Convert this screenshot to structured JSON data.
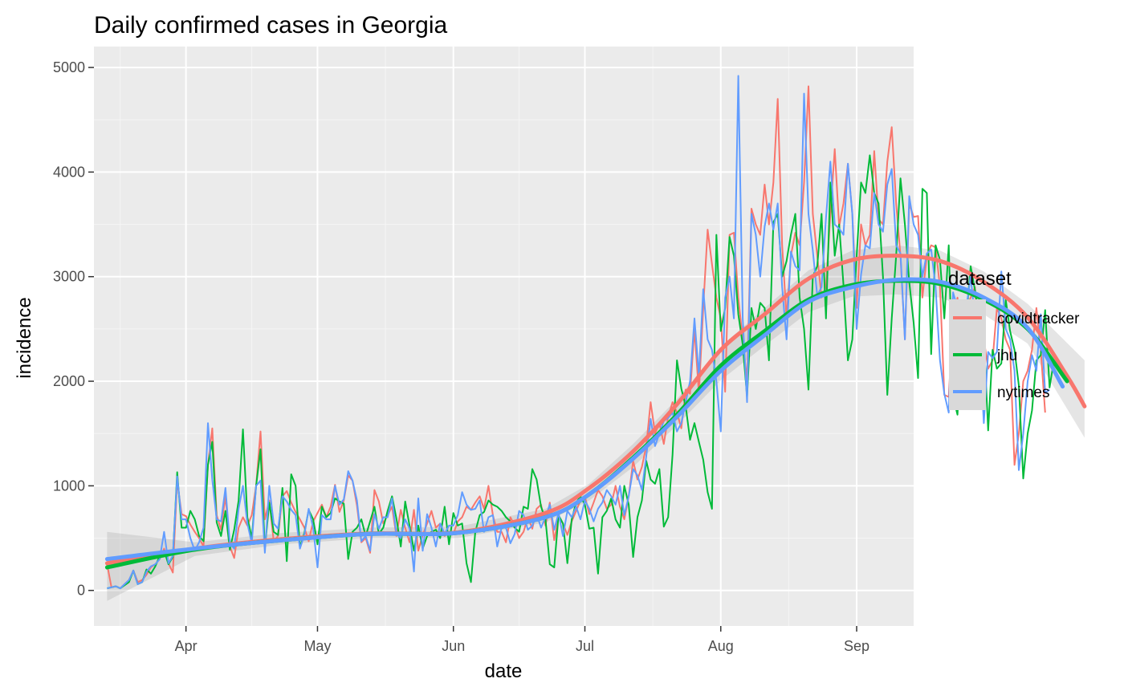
{
  "chart_data": {
    "type": "line",
    "title": "Daily confirmed cases in Georgia",
    "xlabel": "date",
    "ylabel": "incidence",
    "x_start": "2020-03-14",
    "x_range": [
      "2020-03-11",
      "2020-09-14"
    ],
    "ylim": [
      -340,
      5200
    ],
    "y_ticks": [
      0,
      1000,
      2000,
      3000,
      4000,
      5000
    ],
    "x_ticks": [
      {
        "date": "2020-04-01",
        "label": "Apr"
      },
      {
        "date": "2020-05-01",
        "label": "May"
      },
      {
        "date": "2020-06-01",
        "label": "Jun"
      },
      {
        "date": "2020-07-01",
        "label": "Jul"
      },
      {
        "date": "2020-08-01",
        "label": "Aug"
      },
      {
        "date": "2020-09-01",
        "label": "Sep"
      }
    ],
    "grid": true,
    "legend": {
      "title": "dataset",
      "position": "right"
    },
    "series": [
      {
        "name": "covidtracker",
        "color": "#F8766D",
        "values": [
          250,
          30,
          40,
          20,
          60,
          100,
          190,
          80,
          100,
          150,
          220,
          250,
          300,
          400,
          260,
          170,
          1050,
          730,
          710,
          630,
          560,
          500,
          420,
          1200,
          1550,
          720,
          580,
          900,
          420,
          310,
          600,
          700,
          620,
          720,
          1000,
          1520,
          680,
          860,
          470,
          520,
          900,
          950,
          840,
          750,
          680,
          600,
          470,
          660,
          740,
          820,
          700,
          800,
          1010,
          750,
          860,
          1100,
          1050,
          810,
          460,
          500,
          360,
          960,
          850,
          640,
          720,
          800,
          520,
          770,
          600,
          460,
          770,
          380,
          530,
          640,
          760,
          600,
          640,
          520,
          560,
          540,
          660,
          700,
          800,
          770,
          840,
          900,
          780,
          1000,
          720,
          560,
          560,
          460,
          700,
          620,
          500,
          560,
          700,
          590,
          780,
          820,
          620,
          840,
          480,
          700,
          640,
          530,
          660,
          760,
          860,
          900,
          730,
          840,
          960,
          900,
          780,
          820,
          1000,
          800,
          680,
          900,
          1240,
          1060,
          1180,
          1380,
          1800,
          1500,
          1600,
          1400,
          1660,
          1800,
          1700,
          1550,
          1920,
          1880,
          2500,
          1880,
          2700,
          3450,
          3120,
          2800,
          2600,
          1900,
          3400,
          3420,
          2800,
          2400,
          2000,
          3650,
          3500,
          3400,
          3880,
          3500,
          3900,
          4700,
          3300,
          2600,
          3200,
          3420,
          3300,
          3900,
          4820,
          3600,
          3200,
          2800,
          2900,
          3600,
          4220,
          3480,
          3700,
          4080,
          3600,
          2700,
          3500,
          3300,
          3400,
          4200,
          3550,
          3500,
          4100,
          4430,
          3700,
          3200,
          2400,
          3700,
          3570,
          3580,
          2800,
          3200,
          3300,
          3280,
          2900,
          1870,
          1850,
          2600,
          2800,
          2330,
          2700,
          2800,
          2900,
          2200,
          2400,
          2120,
          2200,
          2700,
          2600,
          2400,
          2300,
          1200,
          1500,
          2000,
          2100,
          2300,
          2700,
          2300,
          1700
        ]
      },
      {
        "name": "jhu",
        "color": "#00BA38",
        "values": [
          20,
          30,
          40,
          20,
          50,
          80,
          190,
          60,
          80,
          200,
          160,
          230,
          330,
          380,
          250,
          320,
          1130,
          600,
          600,
          760,
          680,
          520,
          470,
          1200,
          1420,
          650,
          520,
          760,
          390,
          580,
          860,
          1540,
          700,
          500,
          1000,
          1350,
          400,
          840,
          560,
          530,
          980,
          280,
          1110,
          1000,
          410,
          550,
          770,
          680,
          440,
          800,
          700,
          740,
          880,
          850,
          830,
          300,
          560,
          600,
          680,
          520,
          660,
          800,
          540,
          600,
          760,
          900,
          690,
          420,
          850,
          620,
          380,
          620,
          400,
          520,
          560,
          580,
          500,
          800,
          440,
          740,
          620,
          640,
          260,
          80,
          560,
          720,
          750,
          860,
          820,
          800,
          760,
          700,
          660,
          600,
          560,
          800,
          780,
          1160,
          1060,
          800,
          680,
          250,
          220,
          720,
          640,
          260,
          680,
          840,
          900,
          820,
          590,
          600,
          160,
          700,
          760,
          880,
          680,
          600,
          1000,
          820,
          320,
          700,
          860,
          1240,
          1060,
          1020,
          1160,
          610,
          700,
          1300,
          2200,
          1930,
          1760,
          1440,
          1600,
          1420,
          1250,
          940,
          780,
          3400,
          2480,
          2700,
          3380,
          3200,
          2640,
          2350,
          1850,
          2700,
          2500,
          2750,
          2700,
          2200,
          3520,
          3600,
          3000,
          3150,
          3400,
          3600,
          2800,
          2500,
          1920,
          3000,
          3100,
          3600,
          2600,
          3900,
          3200,
          3500,
          2920,
          2200,
          2400,
          3200,
          3900,
          3800,
          4160,
          3800,
          3700,
          3000,
          1870,
          2600,
          3200,
          3940,
          3500,
          2950,
          2560,
          2030,
          3840,
          3800,
          2260,
          3300,
          3160,
          2600,
          3300,
          1850,
          1680,
          2500,
          2600,
          3100,
          2870,
          2600,
          2430,
          1530,
          2300,
          2120,
          2170,
          2780,
          2480,
          2300,
          1960,
          1070,
          1500,
          1720,
          2200,
          2250,
          2680,
          1940,
          2200
        ]
      },
      {
        "name": "nytimes",
        "color": "#619CFF",
        "values": [
          20,
          30,
          40,
          20,
          60,
          100,
          190,
          60,
          80,
          180,
          230,
          250,
          300,
          560,
          260,
          330,
          1090,
          680,
          680,
          500,
          380,
          460,
          600,
          1600,
          1060,
          680,
          660,
          980,
          450,
          400,
          780,
          1000,
          640,
          450,
          1000,
          1050,
          360,
          1000,
          640,
          590,
          900,
          850,
          770,
          720,
          400,
          530,
          780,
          600,
          220,
          720,
          680,
          680,
          1000,
          820,
          870,
          1140,
          1050,
          860,
          470,
          520,
          380,
          730,
          590,
          700,
          700,
          880,
          540,
          500,
          680,
          590,
          180,
          880,
          380,
          730,
          600,
          420,
          640,
          540,
          620,
          620,
          720,
          940,
          820,
          770,
          780,
          860,
          560,
          700,
          720,
          420,
          600,
          600,
          450,
          540,
          760,
          720,
          580,
          620,
          730,
          600,
          700,
          820,
          580,
          740,
          520,
          760,
          700,
          800,
          680,
          860,
          780,
          660,
          780,
          840,
          960,
          900,
          820,
          1000,
          720,
          900,
          1160,
          1100,
          960,
          1280,
          1640,
          1380,
          1500,
          1620,
          1650,
          1700,
          1520,
          1600,
          1800,
          2000,
          2600,
          2050,
          2880,
          2400,
          2300,
          2000,
          1520,
          2800,
          3000,
          2600,
          4920,
          2600,
          1800,
          3600,
          3400,
          3000,
          3480,
          3700,
          3450,
          3700,
          2900,
          2400,
          3240,
          3100,
          3060,
          4750,
          3600,
          3250,
          2820,
          2900,
          3560,
          4100,
          3500,
          3460,
          3400,
          4080,
          3600,
          2500,
          3020,
          3300,
          3270,
          3800,
          3500,
          3430,
          3880,
          4030,
          3300,
          3220,
          2400,
          3770,
          3500,
          3400,
          3000,
          3220,
          3260,
          2900,
          2200,
          1880,
          1700,
          2850,
          2700,
          2450,
          2700,
          3000,
          2600,
          2400,
          1600,
          2280,
          2220,
          2280,
          3050,
          2500,
          2400,
          2100,
          1150,
          1500,
          2000,
          2250,
          2100,
          2640,
          1890,
          1920
        ]
      }
    ],
    "smooth": [
      {
        "name": "covidtracker",
        "x": [
          0,
          20,
          40,
          60,
          80,
          100,
          110,
          120,
          130,
          140,
          150,
          160,
          170,
          180,
          190,
          200,
          210,
          219,
          223
        ],
        "y": [
          260,
          400,
          490,
          545,
          555,
          740,
          980,
          1330,
          1780,
          2300,
          2640,
          2980,
          3160,
          3200,
          3150,
          2950,
          2610,
          2050,
          1760
        ]
      },
      {
        "name": "jhu",
        "x": [
          0,
          20,
          40,
          60,
          80,
          100,
          110,
          120,
          130,
          140,
          150,
          160,
          170,
          180,
          190,
          200,
          210,
          219
        ],
        "y": [
          220,
          390,
          480,
          540,
          550,
          700,
          920,
          1270,
          1680,
          2150,
          2480,
          2780,
          2920,
          2960,
          2930,
          2780,
          2500,
          2000
        ]
      },
      {
        "name": "nytimes",
        "x": [
          0,
          20,
          40,
          60,
          80,
          100,
          110,
          120,
          130,
          140,
          150,
          160,
          170,
          180,
          190,
          200,
          210,
          218
        ],
        "y": [
          300,
          400,
          480,
          540,
          550,
          700,
          920,
          1260,
          1660,
          2100,
          2440,
          2760,
          2900,
          2970,
          2950,
          2800,
          2510,
          1950
        ]
      }
    ],
    "confidence_band": {
      "x": [
        0,
        20,
        40,
        60,
        80,
        100,
        110,
        120,
        130,
        140,
        150,
        160,
        170,
        180,
        190,
        200,
        210,
        223
      ],
      "lower": [
        -100,
        330,
        440,
        500,
        500,
        650,
        860,
        1180,
        1580,
        2010,
        2340,
        2660,
        2810,
        2830,
        2800,
        2640,
        2360,
        1460
      ],
      "upper": [
        560,
        460,
        550,
        600,
        610,
        780,
        1020,
        1400,
        1830,
        2330,
        2700,
        3060,
        3250,
        3300,
        3250,
        3050,
        2740,
        2200
      ]
    }
  }
}
